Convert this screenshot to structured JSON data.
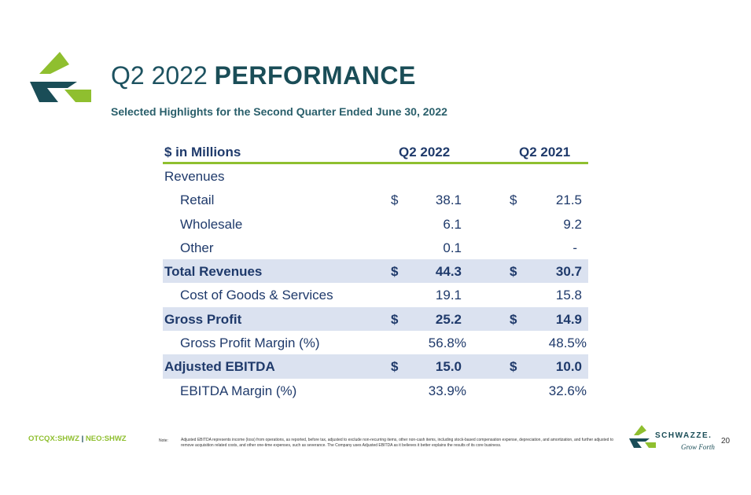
{
  "header": {
    "title_light": "Q2 2022",
    "title_bold": "PERFORMANCE",
    "subtitle": "Selected Highlights for the Second Quarter Ended June 30, 2022"
  },
  "table": {
    "columns": [
      "$ in Millions",
      "Q2 2022",
      "Q2 2021"
    ],
    "currency": "$",
    "rows": [
      {
        "label": "Revenues"
      },
      {
        "label": "Retail",
        "q2_2022": "38.1",
        "q2_2021": "21.5"
      },
      {
        "label": "Wholesale",
        "q2_2022": "6.1",
        "q2_2021": "9.2"
      },
      {
        "label": "Other",
        "q2_2022": "0.1",
        "q2_2021": "-"
      },
      {
        "label": "Total Revenues",
        "q2_2022": "44.3",
        "q2_2021": "30.7"
      },
      {
        "label": "Cost of Goods & Services",
        "q2_2022": "19.1",
        "q2_2021": "15.8"
      },
      {
        "label": "Gross Profit",
        "q2_2022": "25.2",
        "q2_2021": "14.9"
      },
      {
        "label": "Gross Profit Margin (%)",
        "q2_2022": "56.8%",
        "q2_2021": "48.5%"
      },
      {
        "label": "Adjusted EBITDA",
        "q2_2022": "15.0",
        "q2_2021": "10.0"
      },
      {
        "label": "EBITDA Margin (%)",
        "q2_2022": "33.9%",
        "q2_2021": "32.6%"
      }
    ]
  },
  "footer": {
    "ticker_1": "OTCQX:SHWZ",
    "separator": "|",
    "ticker_2": "NEO:SHWZ",
    "note_label": "Note:",
    "note": "Adjusted EBITDA represents income (loss) from operations, as reported, before tax, adjusted to exclude non-recurring items, other non-cash items, including stock-based compensation expense, depreciation, and amortization, and further adjusted to remove acquisition related costs, and other one-time expenses, such as severance. The Company uses Adjusted EBITDA as it believes it better explains the results of its core business.",
    "brand": "SCHWAZZE.",
    "tagline": "Grow Forth",
    "page_number": "20"
  }
}
